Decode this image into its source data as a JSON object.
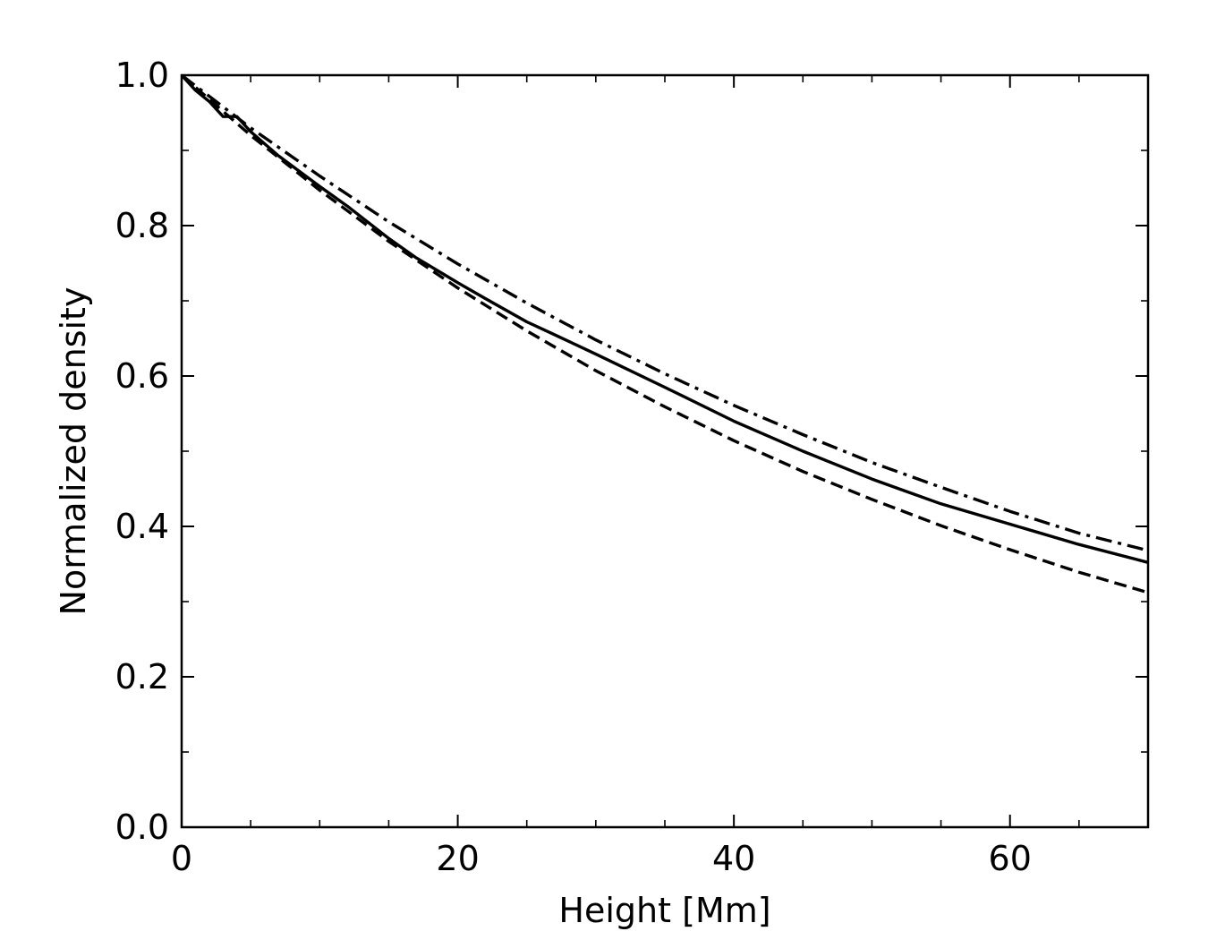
{
  "chart_data": {
    "type": "line",
    "title": "",
    "xlabel": "Height [Mm]",
    "ylabel": "Normalized density",
    "xlim": [
      0,
      70
    ],
    "ylim": [
      0.0,
      1.0
    ],
    "x_ticks": [
      0,
      20,
      40,
      60
    ],
    "x_tick_labels": [
      "0",
      "20",
      "40",
      "60"
    ],
    "x_minor_ticks": [
      5,
      10,
      15,
      25,
      30,
      35,
      45,
      50,
      55,
      65
    ],
    "y_ticks": [
      0.0,
      0.2,
      0.4,
      0.6,
      0.8,
      1.0
    ],
    "y_tick_labels": [
      "0.0",
      "0.2",
      "0.4",
      "0.6",
      "0.8",
      "1.0"
    ],
    "y_minor_ticks": [
      0.1,
      0.3,
      0.5,
      0.7,
      0.9
    ],
    "grid": false,
    "legend": "none",
    "line_color": "#000000",
    "series": [
      {
        "style": "solid",
        "x": [
          0,
          1,
          2,
          3,
          4,
          5,
          7,
          10,
          12,
          15,
          17,
          20,
          22,
          25,
          27,
          30,
          35,
          40,
          45,
          50,
          55,
          60,
          65,
          70
        ],
        "y": [
          1.0,
          0.98,
          0.965,
          0.945,
          0.945,
          0.925,
          0.893,
          0.852,
          0.826,
          0.783,
          0.757,
          0.724,
          0.703,
          0.672,
          0.655,
          0.629,
          0.585,
          0.54,
          0.5,
          0.463,
          0.43,
          0.403,
          0.376,
          0.352
        ]
      },
      {
        "style": "dashed",
        "x": [
          0,
          5,
          10,
          15,
          20,
          25,
          30,
          35,
          40,
          45,
          50,
          55,
          60,
          65,
          70
        ],
        "y": [
          1.0,
          0.92,
          0.847,
          0.779,
          0.717,
          0.66,
          0.607,
          0.559,
          0.514,
          0.473,
          0.436,
          0.401,
          0.369,
          0.339,
          0.312
        ]
      },
      {
        "style": "dashdot",
        "x": [
          0,
          5,
          10,
          15,
          20,
          25,
          30,
          35,
          40,
          45,
          50,
          55,
          60,
          65,
          70
        ],
        "y": [
          1.0,
          0.93,
          0.866,
          0.805,
          0.749,
          0.697,
          0.648,
          0.603,
          0.561,
          0.522,
          0.485,
          0.452,
          0.42,
          0.391,
          0.368
        ]
      }
    ]
  }
}
